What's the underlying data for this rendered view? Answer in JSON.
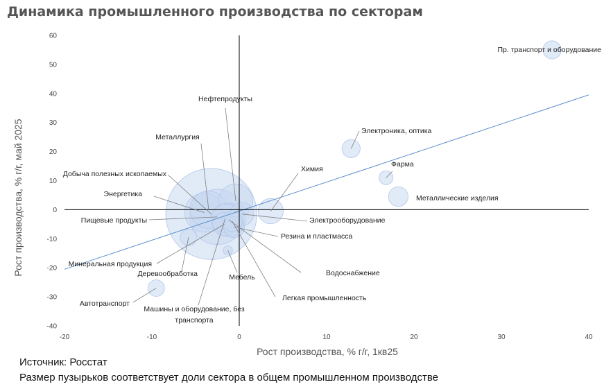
{
  "title": "Динамика промышленного производства по секторам",
  "source": "Источник: Росстат",
  "note": "Размер пузырьков соответствует доли сектора в общем промышленном производстве",
  "colors": {
    "bubble_fill": "#c9d8f0",
    "bubble_stroke": "#b3c8ea",
    "trendline": "#5b8fd0",
    "axis": "#000000",
    "leader": "#7f7f7f"
  },
  "chart_data": {
    "type": "bubble",
    "xlabel": "Рост производства, % г/г, 1кв25",
    "ylabel": "Рост производства, % г/г, май 2025",
    "xlim": [
      -20,
      40
    ],
    "ylim": [
      -40,
      60
    ],
    "xticks": [
      "-20",
      "-10",
      "0",
      "10",
      "20",
      "30",
      "40"
    ],
    "yticks": [
      "-40",
      "-30",
      "-20",
      "-10",
      "0",
      "10",
      "20",
      "30",
      "40",
      "50",
      "60"
    ],
    "trendline": {
      "x": [
        -20,
        40
      ],
      "y": [
        -20.5,
        39.5
      ]
    },
    "points": [
      {
        "label": "Пр. транспорт и оборудование",
        "x": 35.8,
        "y": 55,
        "size": 1.2
      },
      {
        "label": "Электроника, оптика",
        "x": 12.8,
        "y": 21,
        "size": 1.2
      },
      {
        "label": "Фарма",
        "x": 16.8,
        "y": 11,
        "size": 0.7
      },
      {
        "label": "Металлические изделия",
        "x": 18.2,
        "y": 4.5,
        "size": 1.4
      },
      {
        "label": "Химия",
        "x": 3.6,
        "y": -0.5,
        "size": 2.3
      },
      {
        "label": "Нефтепродукты",
        "x": -0.4,
        "y": 3,
        "size": 4.2
      },
      {
        "label": "Металлургия",
        "x": -3.5,
        "y": 0,
        "size": 5
      },
      {
        "label": "Добыча полезных ископаемых",
        "x": -3.2,
        "y": -1.5,
        "size": 30
      },
      {
        "label": "Энергетика",
        "x": -4,
        "y": -1,
        "size": 5.5
      },
      {
        "label": "Пищевые продукты",
        "x": -2.5,
        "y": -2.5,
        "size": 11
      },
      {
        "label": "Электрооборудование",
        "x": 0.3,
        "y": -1.5,
        "size": 2
      },
      {
        "label": "Резина и пластмасса",
        "x": -0.6,
        "y": -6,
        "size": 1.6
      },
      {
        "label": "Водоснабжение",
        "x": -1.2,
        "y": -3.5,
        "size": 4
      },
      {
        "label": "Минеральная продукция",
        "x": -1.7,
        "y": -5,
        "size": 2
      },
      {
        "label": "Деревообработка",
        "x": -5.8,
        "y": -9.5,
        "size": 1
      },
      {
        "label": "Мебель",
        "x": -1.3,
        "y": -14,
        "size": 0.3
      },
      {
        "label": "Легкая промышленность",
        "x": -0.8,
        "y": -4,
        "size": 1.5
      },
      {
        "label": "Машины и оборудование, без транспорта",
        "x": -1.6,
        "y": -3,
        "size": 3
      },
      {
        "label": "Автотранспорт",
        "x": -9.5,
        "y": -27,
        "size": 1
      }
    ]
  }
}
